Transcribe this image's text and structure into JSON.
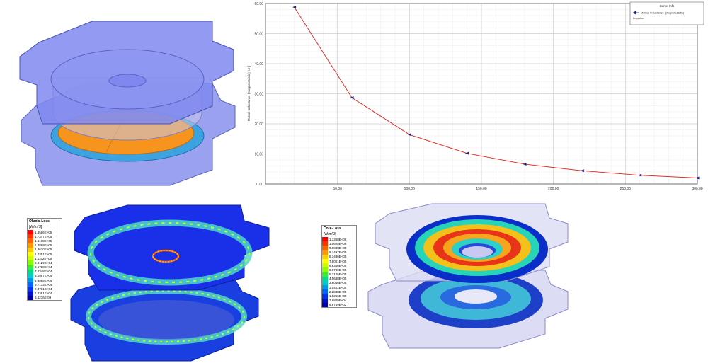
{
  "chart_data": {
    "type": "line",
    "title": "",
    "xlabel": "",
    "ylabel": "Mutual Inductance (Magnetostatic) [uH]",
    "xlim": [
      0,
      300
    ],
    "ylim": [
      0,
      60
    ],
    "x_ticks": [
      "50.00",
      "100.00",
      "150.00",
      "200.00",
      "250.00",
      "300.00"
    ],
    "y_ticks": [
      "0.00",
      "10.00",
      "20.00",
      "30.00",
      "40.00",
      "50.00",
      "60.00"
    ],
    "grid": true,
    "legend_position": "top-right",
    "legend": {
      "title": "Curve Info",
      "entry": "Mutual Inductance (Magnetostatic)",
      "sub": "Imported"
    },
    "series": [
      {
        "name": "Mutual Inductance (Magnetostatic)",
        "color": "#e02020",
        "marker_color": "#1a237e",
        "x": [
          20,
          60,
          100,
          140,
          180,
          220,
          260,
          300
        ],
        "y": [
          58.8,
          28.7,
          16.4,
          10.2,
          6.6,
          4.4,
          2.9,
          2.0
        ]
      }
    ]
  },
  "ohmic_legend": {
    "title": "Ohmic-Loss",
    "unit": "[W/m^3]",
    "values": [
      "1.8586E+05",
      "1.7347E+05",
      "1.6108E+05",
      "1.4869E+05",
      "1.3630E+05",
      "1.2391E+05",
      "1.1152E+05",
      "9.9129E+04",
      "8.6738E+04",
      "7.4348E+04",
      "6.1957E+04",
      "4.9565E+04",
      "3.7173E+04",
      "2.4781E+04",
      "1.2391E+04",
      "5.6276E-09"
    ],
    "colors": [
      "#ff0000",
      "#ff3300",
      "#ff6600",
      "#ff9900",
      "#ffcc00",
      "#ffff00",
      "#ccff00",
      "#88ff00",
      "#33ee33",
      "#00dd88",
      "#00cccc",
      "#0099ee",
      "#0066ff",
      "#0033ee",
      "#0011cc",
      "#0000aa"
    ]
  },
  "core_legend": {
    "title": "Core-Loss",
    "unit": "[W/m^3]",
    "values": [
      "1.1368E+06",
      "1.0628E+06",
      "9.8888E+05",
      "9.1497E+05",
      "8.3436E+05",
      "7.6001E+05",
      "6.8346E+05",
      "6.0790E+05",
      "5.3126E+05",
      "4.5688E+05",
      "3.8016E+05",
      "3.0422E+05",
      "2.2848E+05",
      "1.5266E+05",
      "7.6829E+04",
      "9.8749E+02"
    ],
    "colors": [
      "#ff0000",
      "#ff3300",
      "#ff6600",
      "#ff9900",
      "#ffcc00",
      "#ffff00",
      "#ccff00",
      "#88ff00",
      "#33ee33",
      "#00dd88",
      "#00cccc",
      "#0099ee",
      "#0066ff",
      "#0033ee",
      "#0011cc",
      "#0000aa"
    ]
  }
}
